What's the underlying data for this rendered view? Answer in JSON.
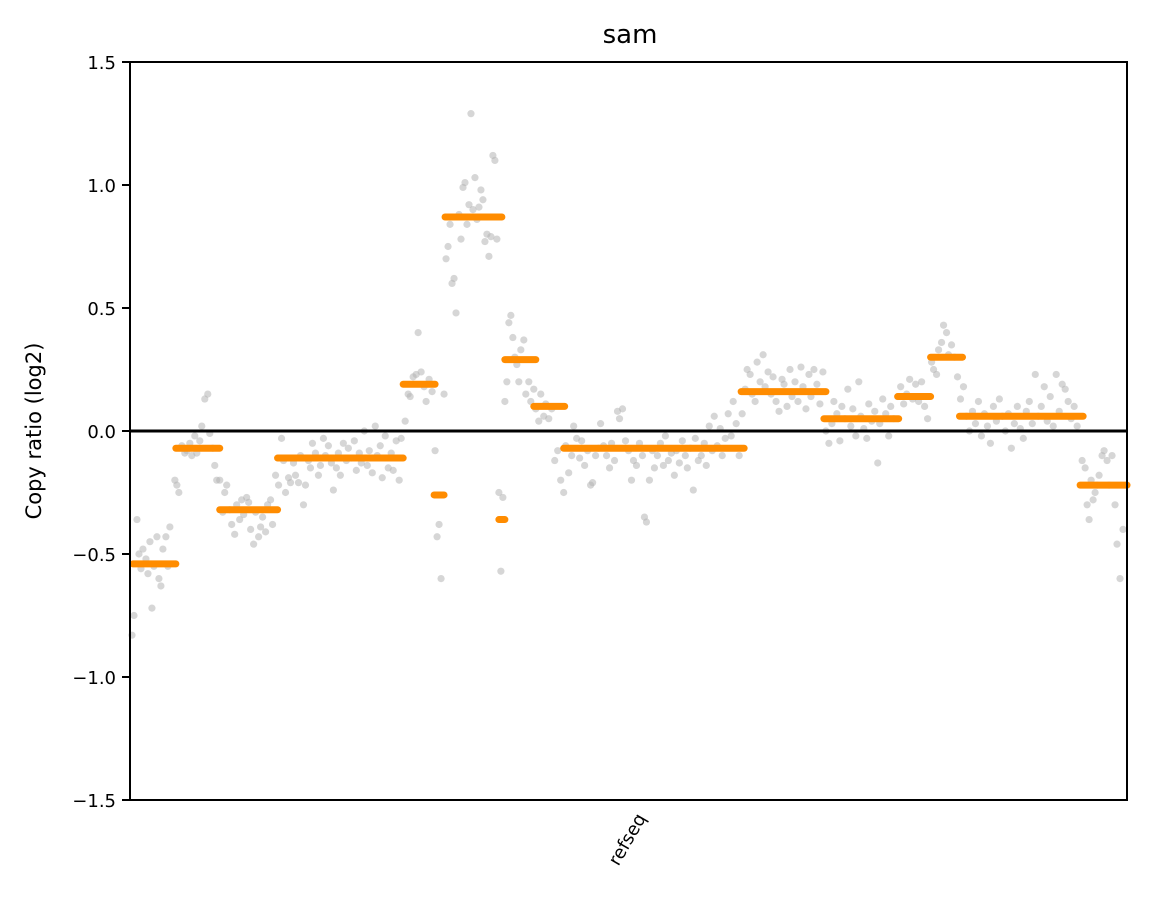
{
  "chart_data": {
    "type": "scatter",
    "title": "sam",
    "xlabel": "",
    "ylabel": "Copy ratio (log2)",
    "ylim": [
      -1.5,
      1.5
    ],
    "y_ticks": [
      -1.5,
      -1.0,
      -0.5,
      0.0,
      0.5,
      1.0,
      1.5
    ],
    "y_tick_labels": [
      "−1.5",
      "−1.0",
      "−0.5",
      "0.0",
      "0.5",
      "1.0",
      "1.5"
    ],
    "x_tick_labels": [
      "refseq"
    ],
    "xlim": [
      0,
      1000
    ],
    "grid": false,
    "reference_line": 0.0,
    "colors": {
      "points": "#b5b5b5",
      "segments": "#ff8c00",
      "axes": "#000000",
      "zero_line": "#000000"
    },
    "segments": [
      {
        "x0": 3,
        "x1": 46,
        "y": -0.54
      },
      {
        "x0": 46,
        "x1": 90,
        "y": -0.07
      },
      {
        "x0": 90,
        "x1": 148,
        "y": -0.32
      },
      {
        "x0": 148,
        "x1": 274,
        "y": -0.11
      },
      {
        "x0": 274,
        "x1": 306,
        "y": 0.19
      },
      {
        "x0": 305,
        "x1": 315,
        "y": -0.26
      },
      {
        "x0": 316,
        "x1": 373,
        "y": 0.87
      },
      {
        "x0": 370,
        "x1": 376,
        "y": -0.36
      },
      {
        "x0": 376,
        "x1": 407,
        "y": 0.29
      },
      {
        "x0": 405,
        "x1": 436,
        "y": 0.1
      },
      {
        "x0": 435,
        "x1": 616,
        "y": -0.07
      },
      {
        "x0": 613,
        "x1": 698,
        "y": 0.16
      },
      {
        "x0": 696,
        "x1": 771,
        "y": 0.05
      },
      {
        "x0": 770,
        "x1": 803,
        "y": 0.14
      },
      {
        "x0": 803,
        "x1": 835,
        "y": 0.3
      },
      {
        "x0": 832,
        "x1": 956,
        "y": 0.06
      },
      {
        "x0": 953,
        "x1": 1000,
        "y": -0.22
      }
    ],
    "points": [
      [
        2,
        -0.83
      ],
      [
        4,
        -0.75
      ],
      [
        7,
        -0.36
      ],
      [
        9,
        -0.5
      ],
      [
        11,
        -0.56
      ],
      [
        13,
        -0.48
      ],
      [
        16,
        -0.52
      ],
      [
        18,
        -0.58
      ],
      [
        20,
        -0.45
      ],
      [
        22,
        -0.72
      ],
      [
        24,
        -0.55
      ],
      [
        27,
        -0.43
      ],
      [
        29,
        -0.6
      ],
      [
        31,
        -0.63
      ],
      [
        33,
        -0.48
      ],
      [
        36,
        -0.43
      ],
      [
        38,
        -0.55
      ],
      [
        40,
        -0.39
      ],
      [
        45,
        -0.2
      ],
      [
        47,
        -0.22
      ],
      [
        49,
        -0.25
      ],
      [
        52,
        -0.06
      ],
      [
        55,
        -0.09
      ],
      [
        57,
        -0.08
      ],
      [
        60,
        -0.05
      ],
      [
        62,
        -0.1
      ],
      [
        65,
        -0.02
      ],
      [
        67,
        -0.09
      ],
      [
        70,
        -0.04
      ],
      [
        72,
        0.02
      ],
      [
        75,
        0.13
      ],
      [
        78,
        0.15
      ],
      [
        80,
        -0.01
      ],
      [
        83,
        -0.07
      ],
      [
        85,
        -0.14
      ],
      [
        87,
        -0.2
      ],
      [
        90,
        -0.2
      ],
      [
        93,
        -0.33
      ],
      [
        95,
        -0.25
      ],
      [
        97,
        -0.22
      ],
      [
        100,
        -0.32
      ],
      [
        102,
        -0.38
      ],
      [
        105,
        -0.42
      ],
      [
        107,
        -0.3
      ],
      [
        110,
        -0.36
      ],
      [
        112,
        -0.28
      ],
      [
        114,
        -0.34
      ],
      [
        117,
        -0.27
      ],
      [
        119,
        -0.29
      ],
      [
        121,
        -0.4
      ],
      [
        124,
        -0.46
      ],
      [
        126,
        -0.33
      ],
      [
        129,
        -0.43
      ],
      [
        131,
        -0.39
      ],
      [
        133,
        -0.35
      ],
      [
        136,
        -0.41
      ],
      [
        138,
        -0.3
      ],
      [
        141,
        -0.28
      ],
      [
        143,
        -0.38
      ],
      [
        146,
        -0.18
      ],
      [
        149,
        -0.22
      ],
      [
        152,
        -0.03
      ],
      [
        154,
        -0.12
      ],
      [
        156,
        -0.25
      ],
      [
        159,
        -0.19
      ],
      [
        161,
        -0.21
      ],
      [
        164,
        -0.13
      ],
      [
        166,
        -0.18
      ],
      [
        169,
        -0.21
      ],
      [
        171,
        -0.1
      ],
      [
        174,
        -0.3
      ],
      [
        176,
        -0.22
      ],
      [
        179,
        -0.12
      ],
      [
        181,
        -0.15
      ],
      [
        183,
        -0.05
      ],
      [
        186,
        -0.09
      ],
      [
        189,
        -0.18
      ],
      [
        191,
        -0.14
      ],
      [
        194,
        -0.03
      ],
      [
        196,
        -0.1
      ],
      [
        199,
        -0.06
      ],
      [
        202,
        -0.13
      ],
      [
        204,
        -0.24
      ],
      [
        207,
        -0.15
      ],
      [
        209,
        -0.09
      ],
      [
        211,
        -0.18
      ],
      [
        214,
        -0.05
      ],
      [
        217,
        -0.12
      ],
      [
        219,
        -0.07
      ],
      [
        222,
        -0.11
      ],
      [
        225,
        -0.04
      ],
      [
        227,
        -0.16
      ],
      [
        230,
        -0.09
      ],
      [
        232,
        -0.13
      ],
      [
        235,
        0.0
      ],
      [
        238,
        -0.14
      ],
      [
        240,
        -0.08
      ],
      [
        243,
        -0.17
      ],
      [
        246,
        0.02
      ],
      [
        248,
        -0.1
      ],
      [
        251,
        -0.06
      ],
      [
        253,
        -0.19
      ],
      [
        256,
        -0.02
      ],
      [
        259,
        -0.15
      ],
      [
        262,
        -0.09
      ],
      [
        264,
        -0.16
      ],
      [
        267,
        -0.04
      ],
      [
        270,
        -0.2
      ],
      [
        272,
        -0.03
      ],
      [
        276,
        0.04
      ],
      [
        279,
        0.15
      ],
      [
        281,
        0.14
      ],
      [
        284,
        0.22
      ],
      [
        287,
        0.23
      ],
      [
        289,
        0.4
      ],
      [
        292,
        0.24
      ],
      [
        295,
        0.18
      ],
      [
        297,
        0.12
      ],
      [
        300,
        0.21
      ],
      [
        303,
        0.16
      ],
      [
        306,
        -0.08
      ],
      [
        308,
        -0.43
      ],
      [
        310,
        -0.38
      ],
      [
        312,
        -0.6
      ],
      [
        315,
        0.15
      ],
      [
        317,
        0.7
      ],
      [
        319,
        0.75
      ],
      [
        321,
        0.84
      ],
      [
        323,
        0.6
      ],
      [
        325,
        0.62
      ],
      [
        327,
        0.48
      ],
      [
        330,
        0.88
      ],
      [
        332,
        0.78
      ],
      [
        334,
        0.99
      ],
      [
        336,
        1.01
      ],
      [
        338,
        0.84
      ],
      [
        340,
        0.92
      ],
      [
        342,
        1.29
      ],
      [
        344,
        0.9
      ],
      [
        346,
        1.03
      ],
      [
        348,
        0.86
      ],
      [
        350,
        0.91
      ],
      [
        352,
        0.98
      ],
      [
        354,
        0.94
      ],
      [
        356,
        0.77
      ],
      [
        358,
        0.8
      ],
      [
        360,
        0.71
      ],
      [
        362,
        0.79
      ],
      [
        364,
        1.12
      ],
      [
        366,
        1.1
      ],
      [
        368,
        0.78
      ],
      [
        370,
        -0.25
      ],
      [
        372,
        -0.57
      ],
      [
        374,
        -0.27
      ],
      [
        376,
        0.12
      ],
      [
        378,
        0.2
      ],
      [
        380,
        0.44
      ],
      [
        382,
        0.47
      ],
      [
        384,
        0.38
      ],
      [
        386,
        0.3
      ],
      [
        388,
        0.27
      ],
      [
        390,
        0.2
      ],
      [
        392,
        0.33
      ],
      [
        395,
        0.37
      ],
      [
        397,
        0.15
      ],
      [
        400,
        0.2
      ],
      [
        402,
        0.12
      ],
      [
        405,
        0.17
      ],
      [
        407,
        0.09
      ],
      [
        410,
        0.04
      ],
      [
        412,
        0.15
      ],
      [
        415,
        0.06
      ],
      [
        417,
        0.11
      ],
      [
        420,
        0.05
      ],
      [
        423,
        0.09
      ],
      [
        426,
        -0.12
      ],
      [
        429,
        -0.08
      ],
      [
        432,
        -0.2
      ],
      [
        435,
        -0.25
      ],
      [
        437,
        -0.06
      ],
      [
        440,
        -0.17
      ],
      [
        443,
        -0.1
      ],
      [
        445,
        0.02
      ],
      [
        448,
        -0.03
      ],
      [
        451,
        -0.11
      ],
      [
        453,
        -0.04
      ],
      [
        456,
        -0.14
      ],
      [
        459,
        -0.08
      ],
      [
        462,
        -0.22
      ],
      [
        464,
        -0.21
      ],
      [
        467,
        -0.1
      ],
      [
        470,
        -0.07
      ],
      [
        472,
        0.03
      ],
      [
        475,
        -0.06
      ],
      [
        478,
        -0.1
      ],
      [
        481,
        -0.15
      ],
      [
        483,
        -0.05
      ],
      [
        486,
        -0.12
      ],
      [
        489,
        0.08
      ],
      [
        491,
        0.05
      ],
      [
        494,
        0.09
      ],
      [
        497,
        -0.04
      ],
      [
        500,
        -0.08
      ],
      [
        503,
        -0.2
      ],
      [
        505,
        -0.12
      ],
      [
        508,
        -0.14
      ],
      [
        511,
        -0.05
      ],
      [
        514,
        -0.1
      ],
      [
        516,
        -0.35
      ],
      [
        518,
        -0.37
      ],
      [
        521,
        -0.2
      ],
      [
        524,
        -0.08
      ],
      [
        526,
        -0.15
      ],
      [
        529,
        -0.1
      ],
      [
        532,
        -0.05
      ],
      [
        535,
        -0.14
      ],
      [
        537,
        -0.02
      ],
      [
        540,
        -0.12
      ],
      [
        543,
        -0.09
      ],
      [
        546,
        -0.18
      ],
      [
        548,
        -0.08
      ],
      [
        551,
        -0.13
      ],
      [
        554,
        -0.04
      ],
      [
        557,
        -0.1
      ],
      [
        559,
        -0.15
      ],
      [
        562,
        -0.07
      ],
      [
        565,
        -0.24
      ],
      [
        567,
        -0.03
      ],
      [
        570,
        -0.12
      ],
      [
        573,
        -0.1
      ],
      [
        576,
        -0.05
      ],
      [
        578,
        -0.14
      ],
      [
        581,
        0.02
      ],
      [
        584,
        -0.08
      ],
      [
        586,
        0.06
      ],
      [
        589,
        -0.06
      ],
      [
        592,
        0.01
      ],
      [
        594,
        -0.1
      ],
      [
        597,
        -0.03
      ],
      [
        600,
        0.07
      ],
      [
        603,
        -0.02
      ],
      [
        605,
        0.12
      ],
      [
        608,
        0.03
      ],
      [
        611,
        -0.1
      ],
      [
        614,
        0.07
      ],
      [
        617,
        0.17
      ],
      [
        619,
        0.25
      ],
      [
        622,
        0.23
      ],
      [
        624,
        0.15
      ],
      [
        627,
        0.12
      ],
      [
        629,
        0.28
      ],
      [
        632,
        0.2
      ],
      [
        635,
        0.31
      ],
      [
        637,
        0.18
      ],
      [
        640,
        0.24
      ],
      [
        643,
        0.15
      ],
      [
        645,
        0.22
      ],
      [
        648,
        0.12
      ],
      [
        651,
        0.08
      ],
      [
        654,
        0.21
      ],
      [
        656,
        0.19
      ],
      [
        659,
        0.1
      ],
      [
        662,
        0.25
      ],
      [
        664,
        0.14
      ],
      [
        667,
        0.2
      ],
      [
        670,
        0.12
      ],
      [
        673,
        0.26
      ],
      [
        675,
        0.18
      ],
      [
        678,
        0.09
      ],
      [
        681,
        0.23
      ],
      [
        683,
        0.14
      ],
      [
        686,
        0.25
      ],
      [
        689,
        0.19
      ],
      [
        692,
        0.11
      ],
      [
        695,
        0.24
      ],
      [
        698,
        0.0
      ],
      [
        701,
        -0.05
      ],
      [
        704,
        0.03
      ],
      [
        706,
        0.12
      ],
      [
        709,
        0.07
      ],
      [
        712,
        -0.04
      ],
      [
        714,
        0.1
      ],
      [
        717,
        0.05
      ],
      [
        720,
        0.17
      ],
      [
        723,
        0.02
      ],
      [
        725,
        0.09
      ],
      [
        728,
        -0.02
      ],
      [
        731,
        0.2
      ],
      [
        733,
        0.06
      ],
      [
        736,
        0.01
      ],
      [
        739,
        -0.03
      ],
      [
        741,
        0.11
      ],
      [
        744,
        0.04
      ],
      [
        747,
        0.08
      ],
      [
        750,
        -0.13
      ],
      [
        752,
        0.03
      ],
      [
        755,
        0.13
      ],
      [
        758,
        0.07
      ],
      [
        761,
        -0.02
      ],
      [
        763,
        0.1
      ],
      [
        766,
        0.05
      ],
      [
        770,
        0.14
      ],
      [
        773,
        0.18
      ],
      [
        776,
        0.11
      ],
      [
        779,
        0.15
      ],
      [
        782,
        0.21
      ],
      [
        785,
        0.13
      ],
      [
        788,
        0.19
      ],
      [
        791,
        0.12
      ],
      [
        794,
        0.2
      ],
      [
        797,
        0.1
      ],
      [
        800,
        0.05
      ],
      [
        804,
        0.28
      ],
      [
        806,
        0.25
      ],
      [
        809,
        0.23
      ],
      [
        811,
        0.33
      ],
      [
        814,
        0.36
      ],
      [
        816,
        0.43
      ],
      [
        819,
        0.4
      ],
      [
        821,
        0.31
      ],
      [
        824,
        0.35
      ],
      [
        827,
        0.3
      ],
      [
        830,
        0.22
      ],
      [
        833,
        0.13
      ],
      [
        836,
        0.18
      ],
      [
        839,
        0.06
      ],
      [
        842,
        0.0
      ],
      [
        845,
        0.08
      ],
      [
        848,
        0.03
      ],
      [
        851,
        0.12
      ],
      [
        854,
        -0.02
      ],
      [
        857,
        0.07
      ],
      [
        860,
        0.02
      ],
      [
        863,
        -0.05
      ],
      [
        866,
        0.1
      ],
      [
        869,
        0.04
      ],
      [
        872,
        0.13
      ],
      [
        875,
        0.06
      ],
      [
        878,
        0.0
      ],
      [
        881,
        0.07
      ],
      [
        884,
        -0.07
      ],
      [
        887,
        0.03
      ],
      [
        890,
        0.1
      ],
      [
        893,
        0.01
      ],
      [
        896,
        -0.03
      ],
      [
        899,
        0.08
      ],
      [
        902,
        0.12
      ],
      [
        905,
        0.03
      ],
      [
        908,
        0.23
      ],
      [
        911,
        0.06
      ],
      [
        914,
        0.1
      ],
      [
        917,
        0.18
      ],
      [
        920,
        0.04
      ],
      [
        923,
        0.14
      ],
      [
        926,
        0.02
      ],
      [
        929,
        0.23
      ],
      [
        932,
        0.08
      ],
      [
        935,
        0.19
      ],
      [
        938,
        0.17
      ],
      [
        941,
        0.12
      ],
      [
        944,
        0.05
      ],
      [
        947,
        0.1
      ],
      [
        950,
        0.02
      ],
      [
        955,
        -0.12
      ],
      [
        958,
        -0.15
      ],
      [
        960,
        -0.3
      ],
      [
        962,
        -0.36
      ],
      [
        964,
        -0.2
      ],
      [
        966,
        -0.28
      ],
      [
        968,
        -0.25
      ],
      [
        970,
        -0.22
      ],
      [
        972,
        -0.18
      ],
      [
        975,
        -0.1
      ],
      [
        977,
        -0.08
      ],
      [
        980,
        -0.12
      ],
      [
        982,
        -0.22
      ],
      [
        985,
        -0.1
      ],
      [
        988,
        -0.3
      ],
      [
        990,
        -0.46
      ],
      [
        993,
        -0.6
      ],
      [
        996,
        -0.4
      ]
    ]
  }
}
